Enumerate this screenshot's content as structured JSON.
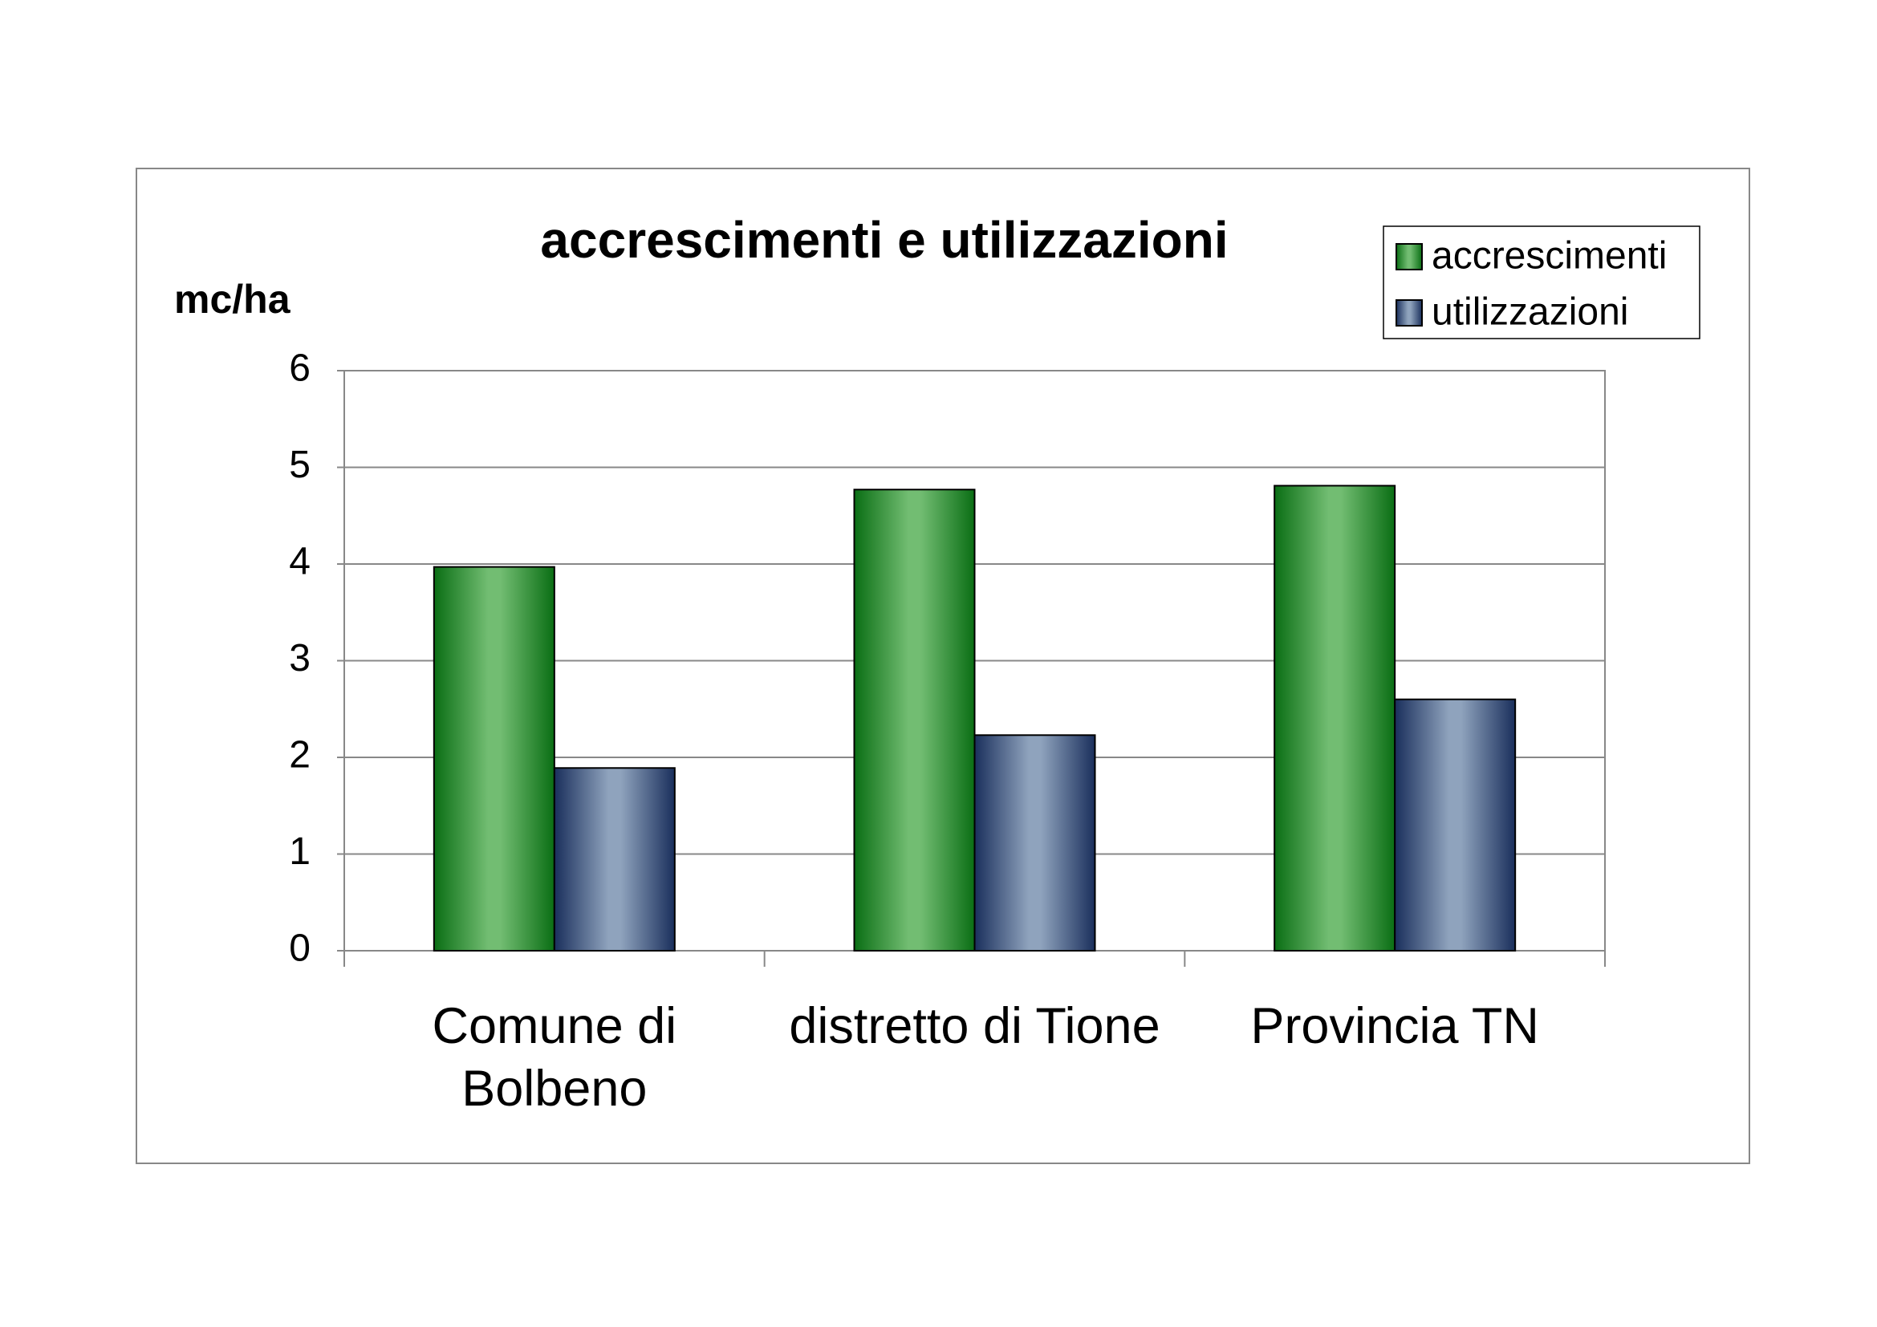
{
  "chart_data": {
    "type": "bar",
    "title": "accrescimenti e utilizzazioni",
    "y_label": "mc/ha",
    "categories": [
      "Comune di Bolbeno",
      "distretto di Tione",
      "Provincia TN"
    ],
    "series": [
      {
        "name": "accrescimenti",
        "color": "#72bd72",
        "values": [
          3.97,
          4.77,
          4.81
        ]
      },
      {
        "name": "utilizzazioni",
        "color": "#8fa3bd",
        "values": [
          1.89,
          2.23,
          2.6
        ]
      }
    ],
    "ylim": [
      0,
      6
    ],
    "yticks": [
      0,
      1,
      2,
      3,
      4,
      5,
      6
    ],
    "grid": true,
    "legend": "top-right"
  }
}
